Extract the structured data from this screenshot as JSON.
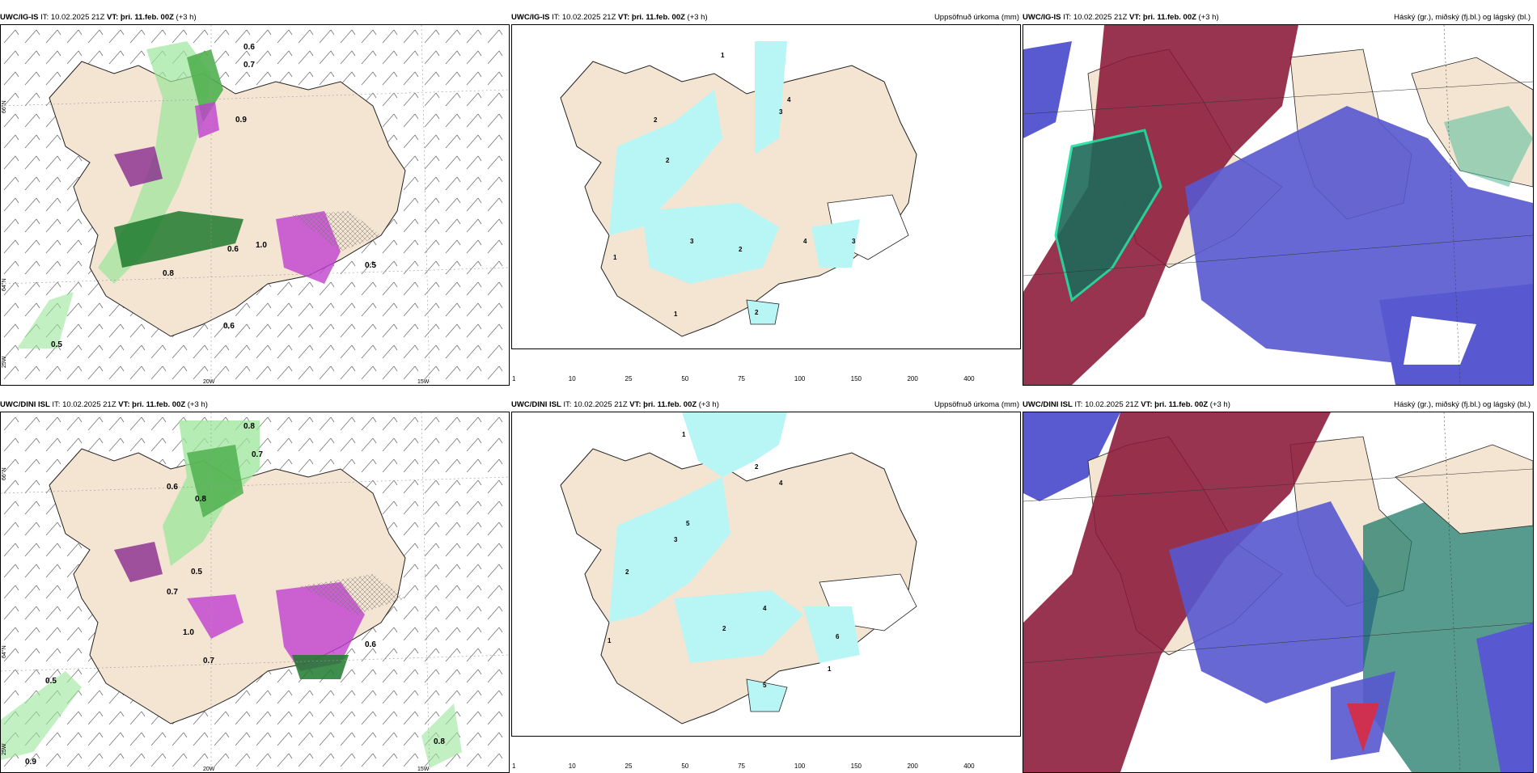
{
  "panels": [
    {
      "model": "UWC/IG-IS",
      "it_label": "IT:",
      "it": "10.02.2025 21Z",
      "vt_label": "VT:",
      "vt": "þri. 11.feb. 00Z",
      "lead": "(+3 h)",
      "right": ""
    },
    {
      "model": "UWC/IG-IS",
      "it_label": "IT:",
      "it": "10.02.2025 21Z",
      "vt_label": "VT:",
      "vt": "þri. 11.feb. 00Z",
      "lead": "(+3 h)",
      "right": "Uppsöfnuð úrkoma (mm)"
    },
    {
      "model": "UWC/IG-IS",
      "it_label": "IT:",
      "it": "10.02.2025 21Z",
      "vt_label": "VT:",
      "vt": "þri. 11.feb. 00Z",
      "lead": "(+3 h)",
      "right": "Háský (gr.), miðský (fj.bl.) og lágský (bl.)"
    },
    {
      "model": "UWC/DINI ISL",
      "it_label": "IT:",
      "it": "10.02.2025 21Z",
      "vt_label": "VT:",
      "vt": "þri. 11.feb. 00Z",
      "lead": "(+3 h)",
      "right": ""
    },
    {
      "model": "UWC/DINI ISL",
      "it_label": "IT:",
      "it": "10.02.2025 21Z",
      "vt_label": "VT:",
      "vt": "þri. 11.feb. 00Z",
      "lead": "(+3 h)",
      "right": "Uppsöfnuð úrkoma (mm)"
    },
    {
      "model": "UWC/DINI ISL",
      "it_label": "IT:",
      "it": "10.02.2025 21Z",
      "vt_label": "VT:",
      "vt": "þri. 11.feb. 00Z",
      "lead": "(+3 h)",
      "right": "Háský (gr.), miðský (fj.bl.) og lágský (bl.)"
    }
  ],
  "grid_labels": {
    "lat66": "66°N",
    "lat64": "64°N",
    "lon20": "20W",
    "lon15": "15W",
    "lon25": "25W"
  },
  "colorbar": {
    "ticks": [
      "1",
      "10",
      "25",
      "50",
      "75",
      "100",
      "150",
      "200",
      "400"
    ],
    "colors": [
      "#b8f5f5",
      "#00e6e6",
      "#00b4e0",
      "#2060e0",
      "#2020b0",
      "#700050",
      "#a01080",
      "#e010a0",
      "#f0b0f0"
    ]
  },
  "precip_labels_top": [
    "0.6",
    "0.7",
    "0.9",
    "1.0",
    "0.8",
    "0.6",
    "0.5",
    "0.6",
    "0.5"
  ],
  "precip_labels_bottom": [
    "0.8",
    "0.7",
    "0.8",
    "0.6",
    "0.5",
    "0.7",
    "1.0",
    "0.7",
    "0.6",
    "0.5",
    "0.9",
    "0.8"
  ],
  "accum_labels_top": [
    "1",
    "2",
    "3",
    "4",
    "2",
    "1",
    "3",
    "2",
    "4",
    "1",
    "2",
    "3"
  ],
  "accum_labels_bottom": [
    "1",
    "2",
    "4",
    "5",
    "3",
    "2",
    "1",
    "4",
    "6",
    "2",
    "1",
    "5"
  ],
  "colors": {
    "land": "#f4e5d3",
    "coast": "#222222",
    "water": "#ffffff"
  }
}
